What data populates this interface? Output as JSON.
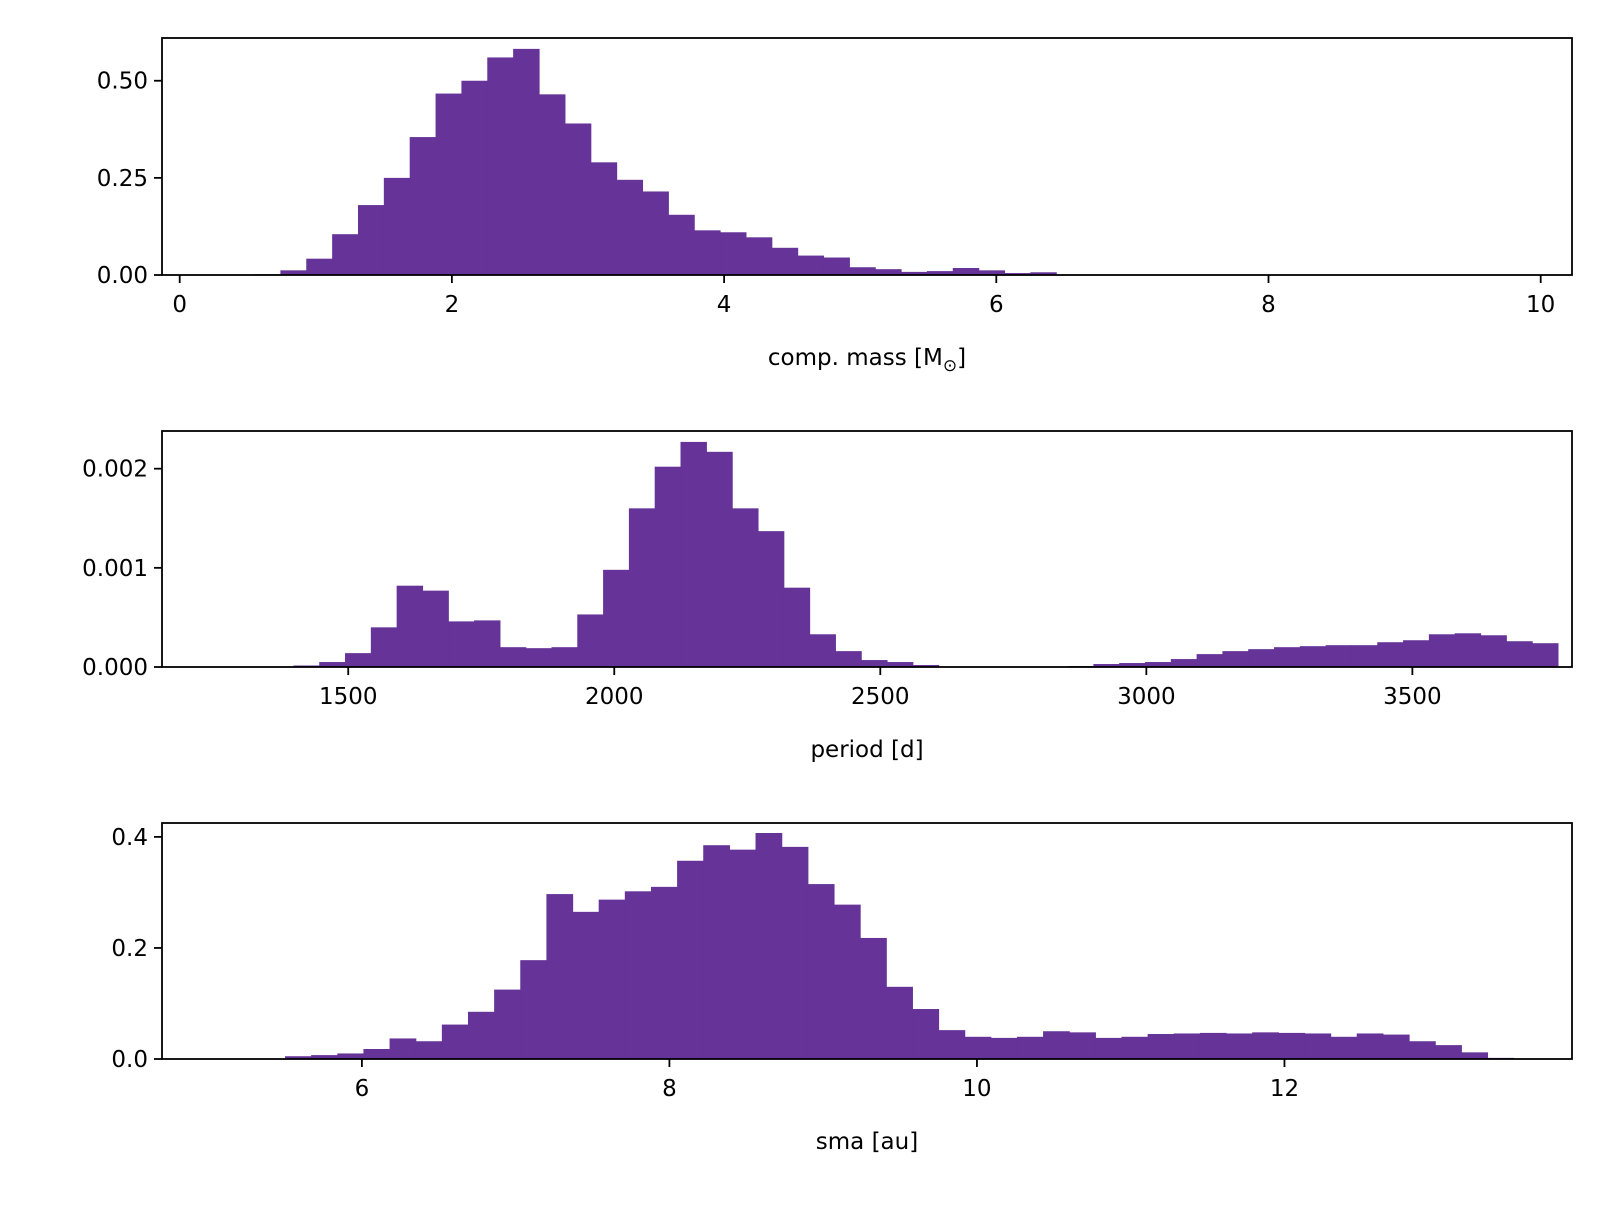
{
  "colors": {
    "bar": "#663399",
    "axis": "#000000",
    "background": "#ffffff"
  },
  "chart_data": [
    {
      "type": "bar",
      "panel": "comp-mass",
      "xlabel_main": "comp. mass [M",
      "xlabel_sub": "⊙",
      "xlabel_tail": "]",
      "ylabel": "",
      "xlim": [
        -0.13,
        10.23
      ],
      "ylim": [
        0,
        0.61
      ],
      "xticks": [
        0,
        2,
        4,
        6,
        8,
        10
      ],
      "xtick_labels": [
        "0",
        "2",
        "4",
        "6",
        "8",
        "10"
      ],
      "yticks": [
        0,
        0.25,
        0.5
      ],
      "ytick_labels": [
        "0.00",
        "0.25",
        "0.50"
      ],
      "bin_start": 0.55,
      "bin_width": 0.19,
      "values": [
        0.002,
        0.012,
        0.042,
        0.105,
        0.18,
        0.25,
        0.355,
        0.467,
        0.5,
        0.56,
        0.582,
        0.465,
        0.39,
        0.29,
        0.245,
        0.215,
        0.155,
        0.115,
        0.11,
        0.097,
        0.07,
        0.05,
        0.045,
        0.02,
        0.015,
        0.008,
        0.01,
        0.018,
        0.012,
        0.005,
        0.007
      ]
    },
    {
      "type": "bar",
      "panel": "period",
      "xlabel": "period [d]",
      "ylabel": "",
      "xlim": [
        1150,
        3800
      ],
      "ylim": [
        0,
        0.00238
      ],
      "xticks": [
        1500,
        2000,
        2500,
        3000,
        3500
      ],
      "xtick_labels": [
        "1500",
        "2000",
        "2500",
        "3000",
        "3500"
      ],
      "yticks": [
        0,
        0.001,
        0.002
      ],
      "ytick_labels": [
        "0.000",
        "0.001",
        "0.002"
      ],
      "bin_start": 1300,
      "bin_width": 48.5,
      "values": [
        5e-06,
        5e-06,
        1.5e-05,
        5e-05,
        0.00014,
        0.0004,
        0.00082,
        0.00077,
        0.00046,
        0.00047,
        0.0002,
        0.00019,
        0.0002,
        0.00053,
        0.00098,
        0.0016,
        0.00202,
        0.00227,
        0.00217,
        0.0016,
        0.00137,
        0.0008,
        0.00033,
        0.00016,
        7e-05,
        5e-05,
        2e-05,
        5e-06,
        3e-06,
        3e-06,
        3e-06,
        5e-06,
        1e-05,
        3e-05,
        4e-05,
        5e-05,
        8e-05,
        0.00013,
        0.00016,
        0.00018,
        0.0002,
        0.00021,
        0.00022,
        0.00022,
        0.00025,
        0.00027,
        0.00033,
        0.00034,
        0.00032,
        0.00026,
        0.00024
      ]
    },
    {
      "type": "bar",
      "panel": "sma",
      "xlabel": "sma [au]",
      "ylabel": "",
      "xlim": [
        4.7,
        13.87
      ],
      "ylim": [
        0,
        0.425
      ],
      "xticks": [
        6,
        8,
        10,
        12
      ],
      "xtick_labels": [
        "6",
        "8",
        "10",
        "12"
      ],
      "yticks": [
        0,
        0.2,
        0.4
      ],
      "ytick_labels": [
        "0.0",
        "0.2",
        "0.4"
      ],
      "bin_start": 5.5,
      "bin_width": 0.17,
      "values": [
        0.005,
        0.007,
        0.01,
        0.018,
        0.037,
        0.032,
        0.062,
        0.085,
        0.125,
        0.178,
        0.297,
        0.265,
        0.287,
        0.302,
        0.31,
        0.357,
        0.385,
        0.377,
        0.407,
        0.382,
        0.315,
        0.278,
        0.218,
        0.13,
        0.09,
        0.052,
        0.04,
        0.038,
        0.04,
        0.05,
        0.048,
        0.038,
        0.04,
        0.045,
        0.046,
        0.047,
        0.046,
        0.048,
        0.047,
        0.046,
        0.04,
        0.046,
        0.044,
        0.032,
        0.025,
        0.012,
        0.002
      ]
    }
  ]
}
